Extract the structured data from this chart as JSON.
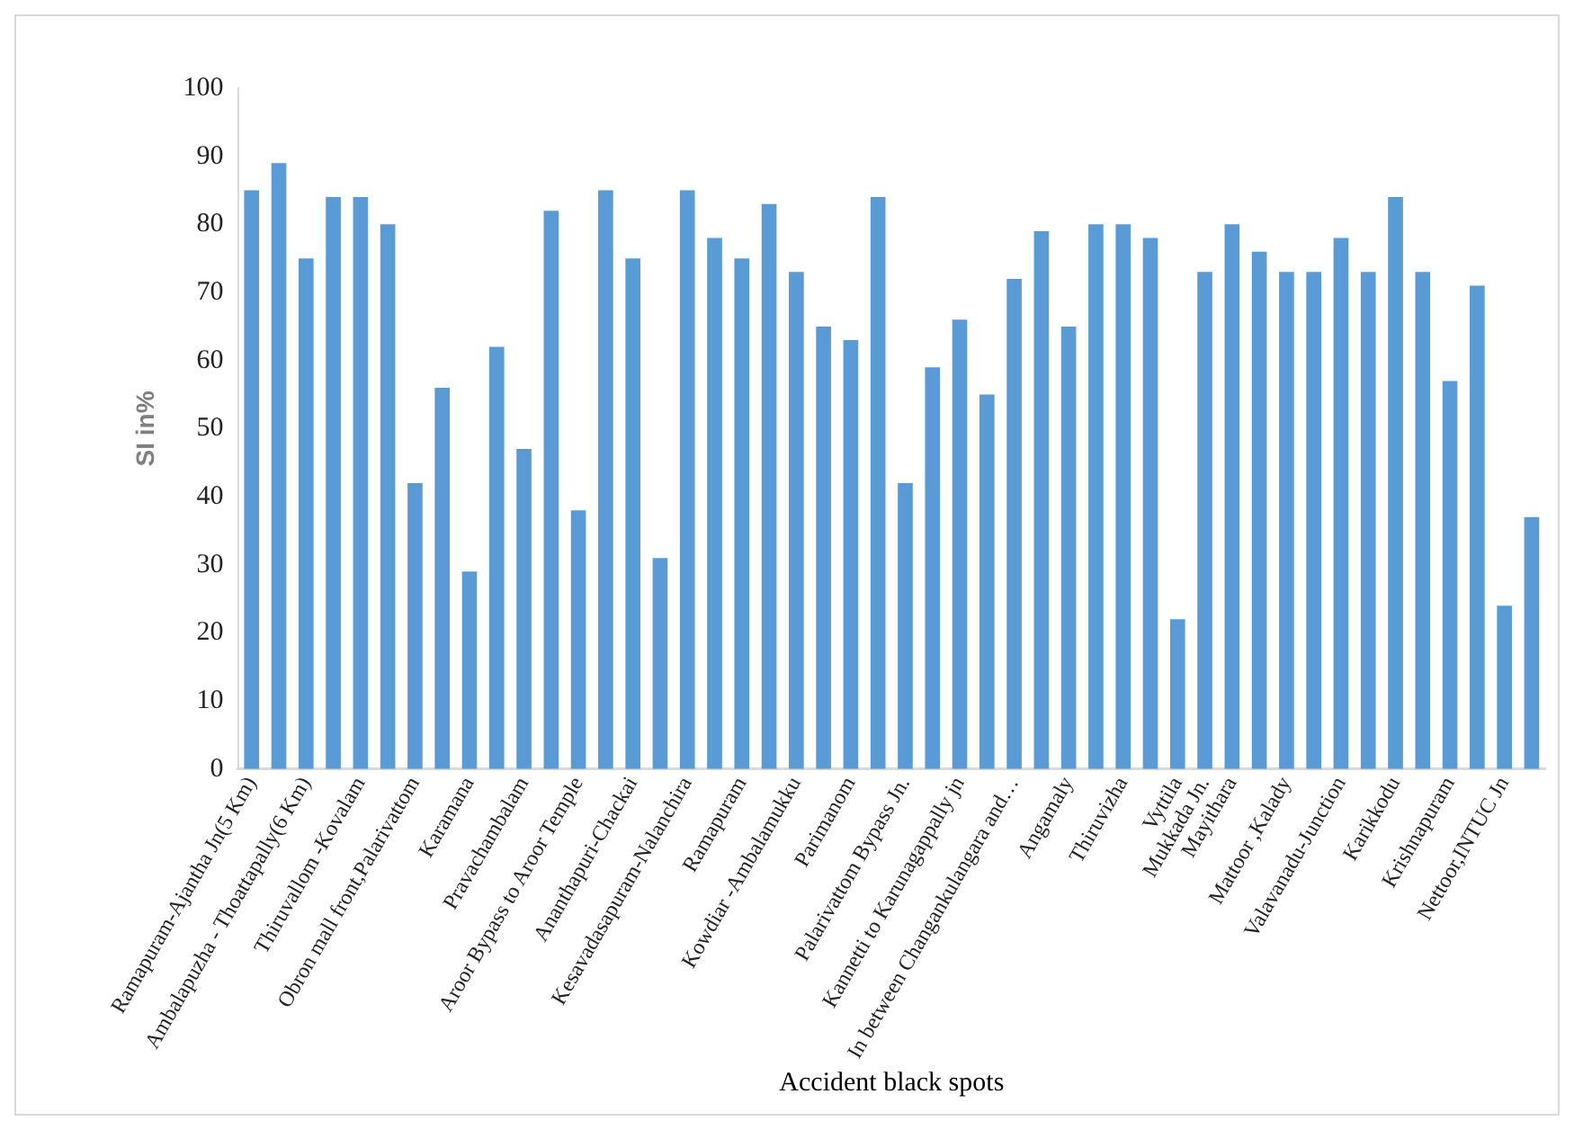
{
  "chart_data": {
    "type": "bar",
    "xlabel": "Accident black spots",
    "ylabel": "SI in%",
    "categories": [
      "Ramapuram-Ajantha Jn(5 Km)",
      null,
      "Ambalapuzha - Thoattapally(6 Km)",
      null,
      "Thiruvallom -Kovalam",
      null,
      "Obron mall front,Palarivattom",
      null,
      "Karamana",
      null,
      "Pravachambalam",
      null,
      "Aroor Bypass to Aroor Temple",
      null,
      "Ananthapuri-Chackai",
      null,
      "Kesavadasapuram-Nalanchira",
      null,
      "Ramapuram",
      null,
      "Kowdiar -Ambalamukku",
      null,
      "Parimanom",
      null,
      "Palarivattom Bypass Jn.",
      null,
      "Kannetti to Karunagappally jn",
      null,
      "In between Changankulangara and…",
      null,
      "Angamaly",
      null,
      "Thiruvizha",
      null,
      "Vyttila",
      "Mukkada Jn.",
      "Mayithara",
      null,
      "Mattoor ,Kalady",
      null,
      "Valavanadu-Junction",
      null,
      "Karikkodu",
      null,
      "Krishnapuram",
      null,
      "Nettoor,INTUC Jn",
      null
    ],
    "values": [
      85,
      89,
      75,
      84,
      84,
      80,
      42,
      56,
      29,
      62,
      47,
      82,
      38,
      85,
      75,
      31,
      85,
      78,
      75,
      83,
      73,
      65,
      63,
      84,
      42,
      59,
      66,
      55,
      72,
      79,
      65,
      80,
      80,
      78,
      22,
      73,
      80,
      76,
      73,
      73,
      78,
      73,
      84,
      73,
      57,
      71,
      24,
      37
    ],
    "color": "#5b9bd5",
    "ylim": [
      0,
      100
    ],
    "yticks": [
      0,
      10,
      20,
      30,
      40,
      50,
      60,
      70,
      80,
      90,
      100
    ],
    "grid": false,
    "legend": false
  }
}
